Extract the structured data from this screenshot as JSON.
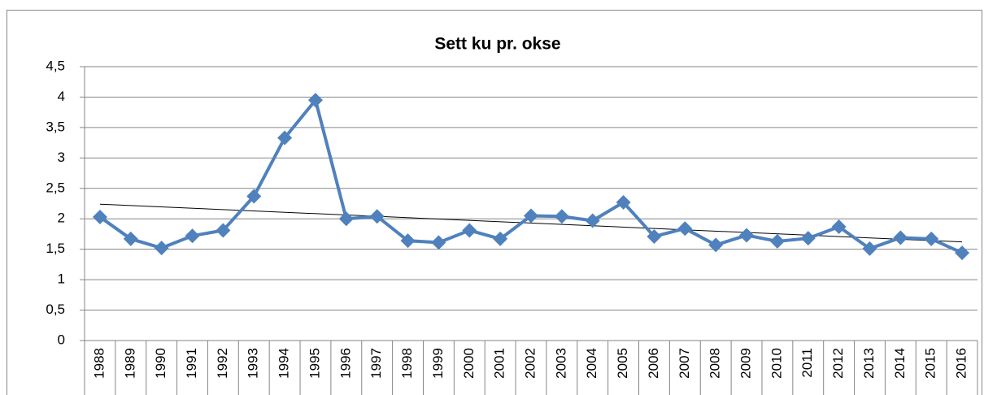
{
  "chart_data": {
    "type": "line",
    "title": "Sett ku pr. okse",
    "categories": [
      "1988",
      "1989",
      "1990",
      "1991",
      "1992",
      "1993",
      "1994",
      "1995",
      "1996",
      "1997",
      "1998",
      "1999",
      "2000",
      "2001",
      "2002",
      "2003",
      "2004",
      "2005",
      "2006",
      "2007",
      "2008",
      "2009",
      "2010",
      "2011",
      "2012",
      "2013",
      "2014",
      "2015",
      "2016"
    ],
    "series": [
      {
        "color": "#4f81bd",
        "values": [
          2.03,
          1.67,
          1.52,
          1.72,
          1.81,
          2.37,
          3.33,
          3.95,
          2.0,
          2.04,
          1.64,
          1.61,
          1.81,
          1.67,
          2.05,
          2.04,
          1.97,
          2.27,
          1.71,
          1.84,
          1.57,
          1.73,
          1.63,
          1.68,
          1.87,
          1.51,
          1.69,
          1.67,
          1.44
        ]
      }
    ],
    "trendline": {
      "color": "#000000",
      "values": [
        2.24,
        1.62
      ]
    },
    "ylim": [
      0,
      4.5
    ],
    "yticks": [
      0,
      {
        "value": 0.5,
        "label": "0,5"
      },
      1,
      {
        "value": 1.5,
        "label": "1,5"
      },
      2,
      {
        "value": 2.5,
        "label": "2,5"
      },
      3,
      {
        "value": 3.5,
        "label": "3,5"
      },
      4,
      {
        "value": 4.5,
        "label": "4,5"
      }
    ],
    "grid": true
  }
}
